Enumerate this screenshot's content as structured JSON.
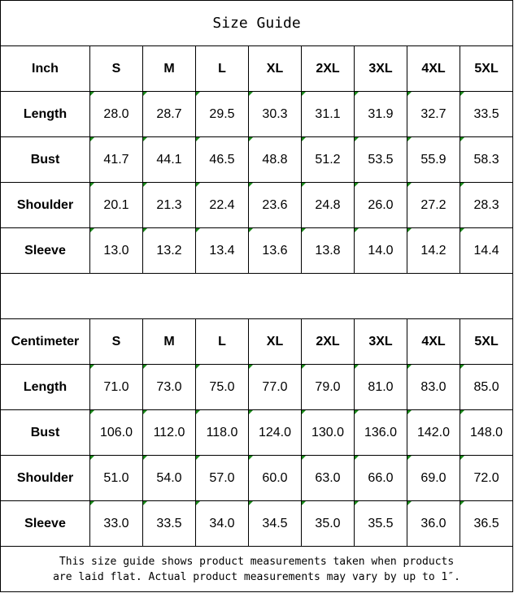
{
  "title": "Size Guide",
  "sizes": [
    "S",
    "M",
    "L",
    "XL",
    "2XL",
    "3XL",
    "4XL",
    "5XL"
  ],
  "inch": {
    "unit_label": "Inch",
    "rows": [
      {
        "label": "Length",
        "values": [
          "28.0",
          "28.7",
          "29.5",
          "30.3",
          "31.1",
          "31.9",
          "32.7",
          "33.5"
        ]
      },
      {
        "label": "Bust",
        "values": [
          "41.7",
          "44.1",
          "46.5",
          "48.8",
          "51.2",
          "53.5",
          "55.9",
          "58.3"
        ]
      },
      {
        "label": "Shoulder",
        "values": [
          "20.1",
          "21.3",
          "22.4",
          "23.6",
          "24.8",
          "26.0",
          "27.2",
          "28.3"
        ]
      },
      {
        "label": "Sleeve",
        "values": [
          "13.0",
          "13.2",
          "13.4",
          "13.6",
          "13.8",
          "14.0",
          "14.2",
          "14.4"
        ]
      }
    ]
  },
  "centimeter": {
    "unit_label": "Centimeter",
    "rows": [
      {
        "label": "Length",
        "values": [
          "71.0",
          "73.0",
          "75.0",
          "77.0",
          "79.0",
          "81.0",
          "83.0",
          "85.0"
        ]
      },
      {
        "label": "Bust",
        "values": [
          "106.0",
          "112.0",
          "118.0",
          "124.0",
          "130.0",
          "136.0",
          "142.0",
          "148.0"
        ]
      },
      {
        "label": "Shoulder",
        "values": [
          "51.0",
          "54.0",
          "57.0",
          "60.0",
          "63.0",
          "66.0",
          "69.0",
          "72.0"
        ]
      },
      {
        "label": "Sleeve",
        "values": [
          "33.0",
          "33.5",
          "34.0",
          "34.5",
          "35.0",
          "35.5",
          "36.0",
          "36.5"
        ]
      }
    ]
  },
  "note": {
    "line1": "This size guide shows product measurements taken when products",
    "line2": "are laid flat. Actual product measurements may vary by up to 1″."
  },
  "colors": {
    "cell_marker": "#1a8a1a",
    "border": "#000000"
  }
}
